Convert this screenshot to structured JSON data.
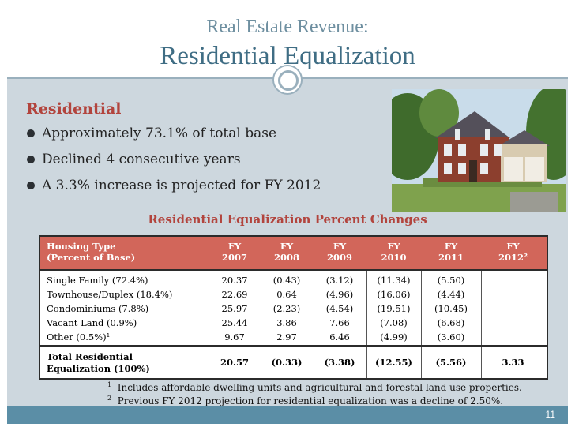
{
  "title": {
    "line1": "Real Estate Revenue:",
    "line2": "Residential Equalization"
  },
  "residential": {
    "heading": "Residential",
    "bullets": [
      "Approximately 73.1% of total base",
      "Declined 4 consecutive years",
      "A 3.3% increase is projected for FY 2012"
    ]
  },
  "table": {
    "title": "Residential Equalization Percent Changes",
    "header": {
      "type_line1": "Housing Type",
      "type_line2": "(Percent of Base)",
      "years": [
        {
          "l1": "FY",
          "l2": "2007"
        },
        {
          "l1": "FY",
          "l2": "2008"
        },
        {
          "l1": "FY",
          "l2": "2009"
        },
        {
          "l1": "FY",
          "l2": "2010"
        },
        {
          "l1": "FY",
          "l2": "2011"
        },
        {
          "l1": "FY",
          "l2": "2012²"
        }
      ]
    },
    "rows": [
      {
        "label": "Single Family (72.4%)",
        "values": [
          "20.37",
          "(0.43)",
          "(3.12)",
          "(11.34)",
          "(5.50)",
          ""
        ]
      },
      {
        "label": "Townhouse/Duplex (18.4%)",
        "values": [
          "22.69",
          "0.64",
          "(4.96)",
          "(16.06)",
          "(4.44)",
          ""
        ]
      },
      {
        "label": "Condominiums (7.8%)",
        "values": [
          "25.97",
          "(2.23)",
          "(4.54)",
          "(19.51)",
          "(10.45)",
          ""
        ]
      },
      {
        "label": "Vacant Land (0.9%)",
        "values": [
          "25.44",
          "3.86",
          "7.66",
          "(7.08)",
          "(6.68)",
          ""
        ]
      },
      {
        "label": "Other (0.5%)¹",
        "values": [
          "9.67",
          "2.97",
          "6.46",
          "(4.99)",
          "(3.60)",
          ""
        ]
      }
    ],
    "total": {
      "label_line1": "Total Residential",
      "label_line2": "Equalization (100%)",
      "values": [
        "20.57",
        "(0.33)",
        "(3.38)",
        "(12.55)",
        "(5.56)",
        "3.33"
      ]
    }
  },
  "footnotes": [
    {
      "mark": "1",
      "text": "Includes affordable dwelling units and agricultural and forestal land use properties."
    },
    {
      "mark": "2",
      "text": "Previous FY 2012 projection for residential equalization was a decline of 2.50%."
    }
  ],
  "page_number": "11"
}
